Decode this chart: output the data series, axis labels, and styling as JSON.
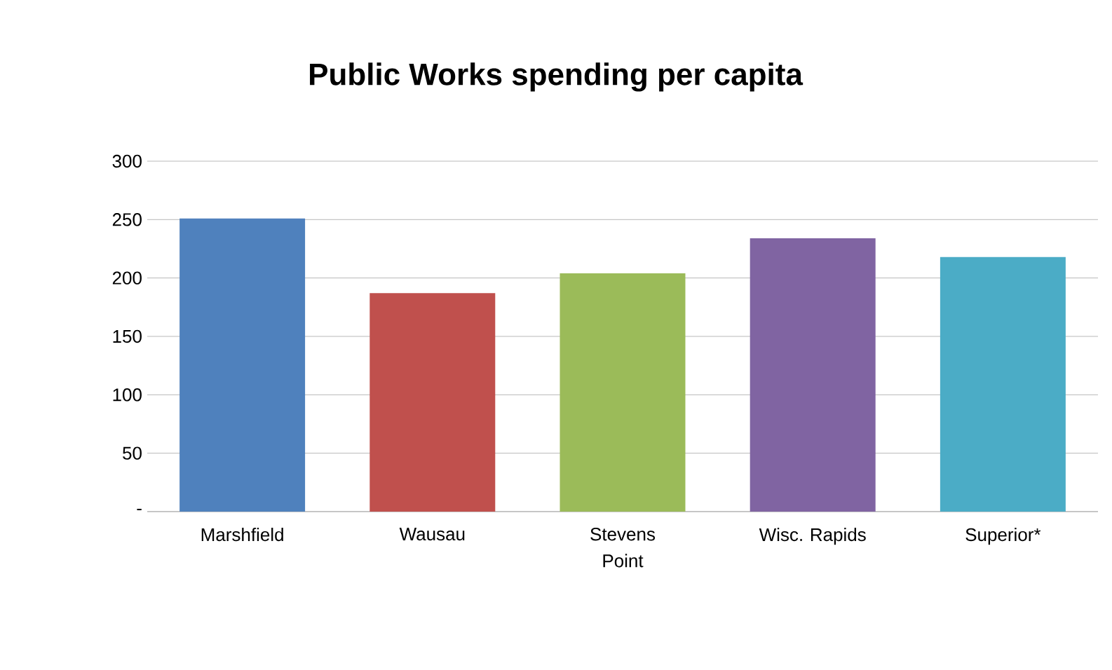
{
  "chart_data": {
    "type": "bar",
    "title": "Public Works spending per capita",
    "categories": [
      "Marshfield",
      "Wausau",
      "Stevens Point",
      "Wisc. Rapids",
      "Superior*"
    ],
    "values": [
      251,
      187,
      204,
      234,
      218
    ],
    "colors": [
      "#4f81bd",
      "#c0504d",
      "#9bbb59",
      "#8064a2",
      "#4bacc6"
    ],
    "ylim": [
      0,
      300
    ],
    "yticks": [
      {
        "value": 0,
        "label": "-"
      },
      50,
      100,
      150,
      200,
      250,
      300
    ],
    "grid": "y"
  }
}
